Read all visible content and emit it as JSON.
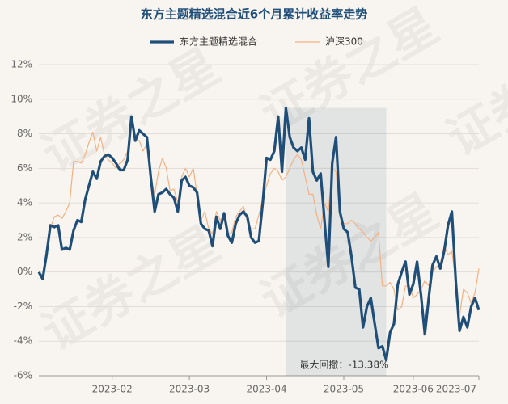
{
  "chart_data": {
    "type": "line",
    "title": "东方主题精选混合近6个月累计收益率走势",
    "watermark": "证券之星",
    "annotation": "最大回撤：-13.38%",
    "legend": "top",
    "grid": true,
    "categories": [
      null,
      null,
      null,
      null,
      null,
      null,
      null,
      null,
      null,
      null,
      null,
      null,
      null,
      null,
      null,
      null,
      null,
      null,
      null,
      "2023-02",
      null,
      null,
      null,
      null,
      null,
      null,
      null,
      null,
      null,
      null,
      null,
      null,
      null,
      null,
      null,
      null,
      null,
      null,
      null,
      "2023-03",
      null,
      null,
      null,
      null,
      null,
      null,
      null,
      null,
      null,
      null,
      null,
      null,
      null,
      null,
      null,
      null,
      null,
      null,
      null,
      "2023-04",
      null,
      null,
      null,
      null,
      null,
      null,
      null,
      null,
      null,
      null,
      null,
      null,
      null,
      null,
      null,
      null,
      null,
      null,
      null,
      "2023-05",
      null,
      null,
      null,
      null,
      null,
      null,
      null,
      null,
      null,
      null,
      null,
      null,
      null,
      null,
      null,
      null,
      null,
      "2023-06",
      null,
      null,
      null,
      null,
      null,
      null,
      null,
      null,
      null,
      null,
      null,
      null,
      null,
      null,
      null,
      null,
      "2023-07"
    ],
    "series": [
      {
        "name": "东方主题精选混合",
        "color": "#1f4e79",
        "width": 3.2,
        "values": [
          0,
          -0.4,
          1,
          2.7,
          2.6,
          2.7,
          1.3,
          1.4,
          1.3,
          2.4,
          3,
          2.9,
          4.2,
          5,
          5.8,
          5.4,
          6.4,
          6.7,
          6.8,
          6.6,
          6.3,
          5.9,
          5.9,
          6.5,
          9.0,
          7.6,
          8.2,
          8.0,
          7.8,
          5.5,
          3.5,
          4.5,
          4.6,
          4.8,
          4.5,
          4.3,
          3.5,
          5.3,
          5.5,
          5.0,
          4.9,
          4.6,
          2.8,
          2.5,
          2.4,
          1.5,
          3.2,
          2.5,
          3.4,
          2.1,
          1.7,
          2.8,
          3.3,
          3.5,
          3.2,
          2.0,
          1.7,
          1.8,
          4.0,
          6.6,
          6.5,
          7.0,
          9.0,
          5.8,
          9.5,
          7.8,
          7.2,
          7.0,
          7.2,
          6.5,
          8.9,
          5.8,
          5.3,
          5.7,
          3.0,
          0.3,
          6.3,
          7.8,
          3.5,
          2.5,
          2.3,
          0.9,
          -0.9,
          -1.0,
          -3.2,
          -2.0,
          -1.5,
          -3.0,
          -4.4,
          -4.3,
          -5.1,
          -3.5,
          -3.0,
          -0.7,
          0,
          0.6,
          -1.3,
          -0.7,
          0.6,
          -1.3,
          -3.6,
          -1.5,
          0.4,
          0.9,
          0.2,
          1.2,
          2.7,
          3.5,
          -0.5,
          -3.4,
          -2.6,
          -3.2,
          -2.0,
          -1.5,
          -2.2
        ]
      },
      {
        "name": "沪深300",
        "color": "#f4b183",
        "width": 1.2,
        "values": [
          0,
          -0.2,
          0.8,
          2.5,
          3.2,
          3.3,
          3.1,
          3.5,
          4.0,
          6.4,
          6.4,
          6.3,
          6.8,
          7.5,
          8.1,
          7.0,
          7.8,
          6.8,
          6.5,
          6.3,
          6.0,
          6.3,
          6.5,
          7.0,
          8.6,
          7.6,
          7.6,
          7.0,
          7.4,
          5.5,
          4.5,
          5.8,
          6.6,
          6.0,
          4.7,
          4.8,
          4.0,
          5.5,
          6.0,
          5.5,
          6.0,
          4.5,
          3.0,
          3.5,
          2.5,
          2.2,
          3.5,
          3.0,
          3.3,
          2.2,
          2.3,
          3.2,
          3.5,
          3.8,
          3.0,
          2.5,
          2.5,
          3.3,
          4.2,
          5.0,
          5.7,
          6.0,
          5.8,
          5.3,
          5.5,
          6.0,
          6.5,
          6.8,
          6.5,
          5.5,
          4.5,
          4.5,
          3.3,
          2.5,
          4.0,
          3.5,
          6.0,
          5.8,
          3.2,
          2.8,
          2.8,
          3.0,
          2.8,
          2.5,
          2.3,
          2.0,
          1.8,
          2.0,
          2.3,
          -0.8,
          -0.8,
          -0.6,
          -1.0,
          -2.2,
          -2.0,
          -0.8,
          -0.8,
          -1.5,
          -1.3,
          -1.0,
          -0.5,
          -0.8,
          0.0,
          0.3,
          0.5,
          1.5,
          1.0,
          1.2,
          -0.5,
          -2.5,
          -1.0,
          -1.2,
          -1.8,
          -1.2,
          0.2
        ]
      }
    ],
    "ylim": [
      -6,
      12
    ],
    "yticks": [
      {
        "value": -6,
        "label": "-6%"
      },
      {
        "value": -4,
        "label": "-4%"
      },
      {
        "value": -2,
        "label": "-2%"
      },
      {
        "value": 0,
        "label": "0%"
      },
      {
        "value": 2,
        "label": "2%"
      },
      {
        "value": 4,
        "label": "4%"
      },
      {
        "value": 6,
        "label": "6%"
      },
      {
        "value": 8,
        "label": "8%"
      },
      {
        "value": 10,
        "label": "10%"
      },
      {
        "value": 12,
        "label": "12%"
      }
    ]
  }
}
